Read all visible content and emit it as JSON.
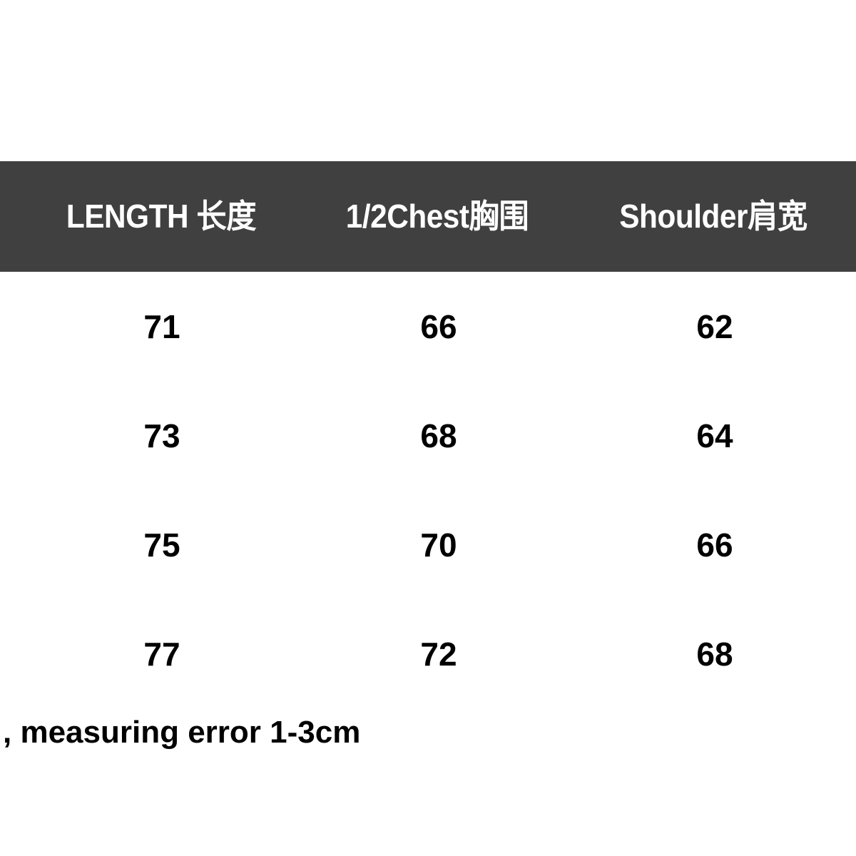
{
  "table": {
    "headers": [
      "LENGTH 长度",
      "1/2Chest胸围",
      "Shoulder肩宽"
    ],
    "rows": [
      [
        "71",
        "66",
        "62"
      ],
      [
        "73",
        "68",
        "64"
      ],
      [
        "75",
        "70",
        "66"
      ],
      [
        "77",
        "72",
        "68"
      ]
    ],
    "header_bg": "#404040"
  },
  "note": ", measuring error 1-3cm"
}
